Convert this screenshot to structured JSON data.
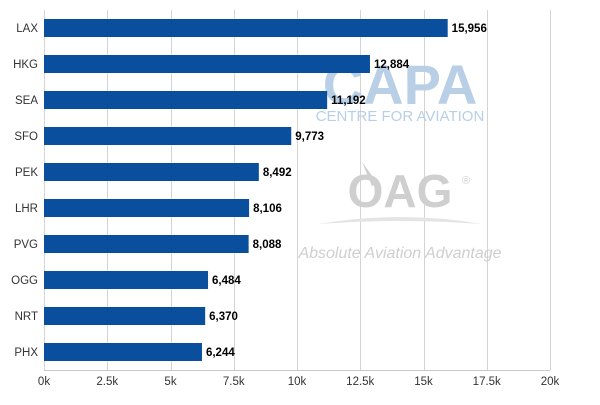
{
  "chart_data": {
    "type": "bar",
    "orientation": "horizontal",
    "categories": [
      "LAX",
      "HKG",
      "SEA",
      "SFO",
      "PEK",
      "LHR",
      "PVG",
      "OGG",
      "NRT",
      "PHX"
    ],
    "values": [
      15956,
      12884,
      11192,
      9773,
      8492,
      8106,
      8088,
      6484,
      6370,
      6244
    ],
    "value_labels": [
      "15,956",
      "12,884",
      "11,192",
      "9,773",
      "8,492",
      "8,106",
      "8,088",
      "6,484",
      "6,370",
      "6,244"
    ],
    "xlim": [
      0,
      20000
    ],
    "xticks": [
      0,
      2500,
      5000,
      7500,
      10000,
      12500,
      15000,
      17500,
      20000
    ],
    "xtick_labels": [
      "0k",
      "2.5k",
      "5k",
      "7.5k",
      "10k",
      "12.5k",
      "15k",
      "17.5k",
      "20k"
    ],
    "grid": "vertical",
    "bar_color": "#0a4f9e",
    "grid_color": "#d4d4d4",
    "title": "",
    "xlabel": "",
    "ylabel": ""
  },
  "watermarks": {
    "capa_logo": "CAPA",
    "capa_subtitle": "CENTRE FOR AVIATION",
    "oag_logo": "OAG",
    "oag_registered": "®",
    "oag_tagline": "Absolute Aviation Advantage",
    "capa_color": "#b8cfe6",
    "oag_color": "#cfcfcf"
  }
}
